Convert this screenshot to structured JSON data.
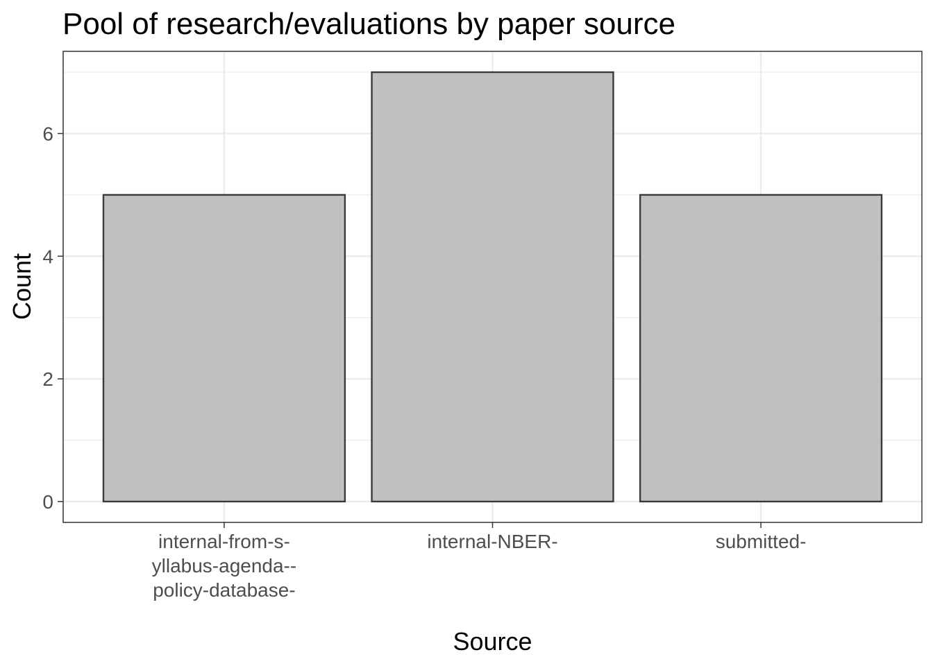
{
  "chart_data": {
    "type": "bar",
    "title": "Pool of research/evaluations by paper source",
    "xlabel": "Source",
    "ylabel": "Count",
    "categories": [
      [
        "internal-from-s-",
        "yllabus-agenda--",
        "policy-database-"
      ],
      [
        "internal-NBER-"
      ],
      [
        "submitted-"
      ]
    ],
    "values": [
      5,
      7,
      5
    ],
    "ylim": [
      -0.34,
      7.34
    ],
    "yticks": [
      0,
      2,
      4,
      6
    ],
    "grid": true,
    "legend": "none",
    "colors": {
      "bar_fill": "#c0c0c0",
      "bar_stroke": "#3a3a3a",
      "grid": "#ebebeb",
      "panel_border": "#333333",
      "tick_text": "#4d4d4d"
    }
  }
}
